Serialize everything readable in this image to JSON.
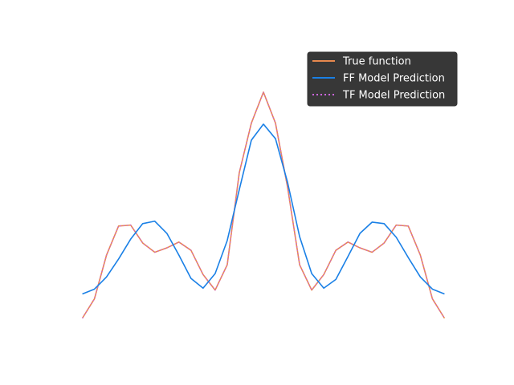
{
  "chart_data": {
    "type": "line",
    "title": "",
    "xlabel": "",
    "ylabel": "",
    "axes_visible": false,
    "grid": false,
    "legend_position": "top-right",
    "legend_style": "dark",
    "x": [
      0,
      1,
      2,
      3,
      4,
      5,
      6,
      7,
      8,
      9,
      10,
      11,
      12,
      13,
      14,
      15,
      16,
      17,
      18,
      19,
      20,
      21,
      22,
      23,
      24,
      25,
      26,
      27,
      28,
      29,
      30
    ],
    "xlim": [
      -1.5,
      31.5
    ],
    "ylim": [
      -0.5,
      5.6
    ],
    "series": [
      {
        "name": "True function",
        "color": "#e8884e",
        "style": "solid",
        "values": [
          0.0,
          0.4,
          1.3,
          1.9,
          1.92,
          1.55,
          1.36,
          1.45,
          1.57,
          1.4,
          0.9,
          0.58,
          1.1,
          3.0,
          4.02,
          4.66,
          4.02,
          2.7,
          1.1,
          0.58,
          0.9,
          1.4,
          1.57,
          1.45,
          1.36,
          1.55,
          1.92,
          1.9,
          1.3,
          0.4,
          0.0
        ]
      },
      {
        "name": "FF Model Prediction",
        "color": "#1a80e6",
        "style": "solid",
        "values": [
          0.5,
          0.6,
          0.85,
          1.22,
          1.63,
          1.95,
          2.0,
          1.75,
          1.3,
          0.82,
          0.62,
          0.92,
          1.6,
          2.65,
          3.67,
          4.0,
          3.7,
          2.8,
          1.68,
          0.92,
          0.62,
          0.8,
          1.27,
          1.75,
          1.98,
          1.95,
          1.67,
          1.25,
          0.85,
          0.6,
          0.5
        ]
      },
      {
        "name": "TF Model Prediction",
        "color": "#cc66dd",
        "style": "dotted",
        "values": [
          0.0,
          0.4,
          1.3,
          1.9,
          1.92,
          1.55,
          1.36,
          1.45,
          1.57,
          1.4,
          0.9,
          0.58,
          1.1,
          3.0,
          4.02,
          4.66,
          4.02,
          2.7,
          1.1,
          0.58,
          0.9,
          1.4,
          1.57,
          1.45,
          1.36,
          1.55,
          1.92,
          1.9,
          1.3,
          0.4,
          0.0
        ]
      }
    ]
  }
}
